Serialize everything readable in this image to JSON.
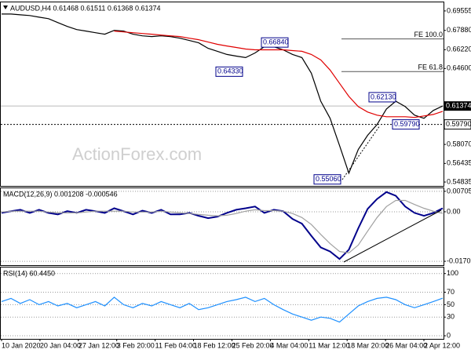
{
  "chart_data": [
    {
      "type": "line",
      "title": "AUDUSD,H4  0.61468 0.61511 0.61368 0.61374",
      "watermark": "ActionForex.com",
      "ylim": [
        0.545,
        0.7036
      ],
      "yticks": [
        {
          "value": 0.69555,
          "label": "0.69555"
        },
        {
          "value": 0.6788,
          "label": "0.67880"
        },
        {
          "value": 0.6622,
          "label": "0.66220"
        },
        {
          "value": 0.646,
          "label": "0.64600"
        },
        {
          "value": 0.5807,
          "label": "0.58070"
        },
        {
          "value": 0.56435,
          "label": "0.56435"
        },
        {
          "value": 0.54835,
          "label": "0.54835"
        }
      ],
      "grid": false,
      "current_price": {
        "value": 0.61374,
        "label": "0.61374"
      },
      "support": {
        "value": 0.5979,
        "label": "0.59790"
      },
      "fib_levels": [
        {
          "value": 0.6715,
          "label": "FE 100.0"
        },
        {
          "value": 0.6434,
          "label": "FE 61.8"
        }
      ],
      "annotations": [
        {
          "value": 0.6684,
          "label": "0.66840"
        },
        {
          "value": 0.6433,
          "label": "0.64330"
        },
        {
          "value": 0.6213,
          "label": "0.62130"
        },
        {
          "value": 0.5979,
          "label": "0.59790"
        },
        {
          "value": 0.5506,
          "label": "0.55060"
        }
      ],
      "series": [
        {
          "color": "#000000",
          "values": [
            0.6929,
            0.6929,
            0.6922,
            0.6916,
            0.6902,
            0.6889,
            0.6855,
            0.6822,
            0.6795,
            0.6782,
            0.6768,
            0.6755,
            0.6788,
            0.6782,
            0.6755,
            0.6741,
            0.6735,
            0.6741,
            0.6735,
            0.6721,
            0.6701,
            0.6681,
            0.6634,
            0.6608,
            0.6581,
            0.6567,
            0.6554,
            0.6594,
            0.6648,
            0.6648,
            0.6621,
            0.6581,
            0.6554,
            0.642,
            0.6179,
            0.6032,
            0.5798,
            0.556,
            0.5764,
            0.5885,
            0.5978,
            0.6112,
            0.6179,
            0.6132,
            0.6059,
            0.6032,
            0.6099,
            0.61374
          ]
        },
        {
          "color": "#e00000",
          "values": [
            null,
            null,
            null,
            null,
            null,
            null,
            null,
            null,
            null,
            null,
            null,
            null,
            0.6782,
            0.6775,
            0.6768,
            0.6761,
            0.6755,
            0.6748,
            0.6741,
            0.6735,
            0.6721,
            0.6708,
            0.6688,
            0.6668,
            0.6654,
            0.6641,
            0.6628,
            0.6621,
            0.6621,
            0.6621,
            0.6621,
            0.6614,
            0.6608,
            0.6581,
            0.6534,
            0.6447,
            0.6333,
            0.622,
            0.6132,
            0.6086,
            0.6059,
            0.6045,
            0.6045,
            0.6045,
            0.6039,
            0.6052,
            0.6065,
            0.6092
          ]
        }
      ]
    },
    {
      "type": "line",
      "title": "MACD(12,26,9) 0.001208 -0.000546",
      "ylim": [
        -0.01842,
        0.00838
      ],
      "yticks": [
        0.007058,
        {
          "value": 0,
          "label": "0.00"
        },
        -0.01709
      ],
      "grid": true,
      "series": [
        {
          "color": "#00008b",
          "values": [
            -0.0004,
            0.0002,
            0.0007,
            -0.0004,
            0.0007,
            -0.0004,
            -0.0009,
            0.0002,
            -0.0004,
            0.0007,
            0.0002,
            -0.0004,
            0.0012,
            0.0002,
            -0.0009,
            0.0004,
            -0.0004,
            0.0007,
            -0.0009,
            -0.0009,
            -0.0004,
            -0.0014,
            -0.0022,
            -0.0017,
            -0.0004,
            0.0007,
            0.0012,
            0.0018,
            -0.0004,
            0.0007,
            0.0002,
            -0.0025,
            -0.0041,
            -0.0083,
            -0.0123,
            -0.0137,
            -0.0163,
            -0.0131,
            -0.0057,
            0.001,
            0.0044,
            0.0068,
            0.0055,
            0.0018,
            -0.0004,
            -0.0014,
            -0.0004,
            0.001208
          ]
        },
        {
          "color": "#a0a0a0",
          "values": [
            -0.0001,
            0.0002,
            0.0002,
            0.0002,
            0.0002,
            -0.0001,
            -0.0004,
            -0.0004,
            -0.0004,
            -0.0001,
            0.0002,
            0.0002,
            0.0002,
            0.0002,
            -0.0001,
            -0.0001,
            -0.0001,
            0.0002,
            -0.0001,
            -0.0004,
            -0.0006,
            -0.0009,
            -0.0012,
            -0.0014,
            -0.0012,
            -0.0006,
            0.0002,
            0.0007,
            0.0004,
            0.0004,
            0.0002,
            -0.0006,
            -0.002,
            -0.0044,
            -0.0078,
            -0.011,
            -0.0137,
            -0.0142,
            -0.0115,
            -0.0067,
            -0.002,
            0.0018,
            0.0039,
            0.0039,
            0.0025,
            0.0012,
            0.0002,
            -0.000546
          ]
        }
      ]
    },
    {
      "type": "line",
      "title": "RSI(14) 60.4450",
      "ylim": [
        -5,
        111
      ],
      "yticks": [
        100,
        70,
        50,
        30,
        0
      ],
      "grid": true,
      "series": [
        {
          "color": "#1e90ff",
          "values": [
            55,
            60,
            52,
            58,
            50,
            55,
            48,
            52,
            45,
            50,
            55,
            48,
            62,
            50,
            45,
            52,
            48,
            55,
            50,
            45,
            52,
            42,
            45,
            50,
            55,
            58,
            62,
            55,
            60,
            50,
            42,
            35,
            30,
            25,
            30,
            28,
            22,
            35,
            48,
            55,
            60,
            62,
            58,
            50,
            45,
            50,
            55,
            60.445
          ]
        }
      ],
      "time_labels": [
        "10 Jan 2020",
        "20 Jan 04:00",
        "27 Jan 12:00",
        "3 Feb 20:00",
        "11 Feb 04:00",
        "18 Feb 12:00",
        "25 Feb 20:00",
        "4 Mar 04:00",
        "11 Mar 12:00",
        "18 Mar 20:00",
        "26 Mar 04:00",
        "2 Apr 12:00"
      ]
    }
  ]
}
